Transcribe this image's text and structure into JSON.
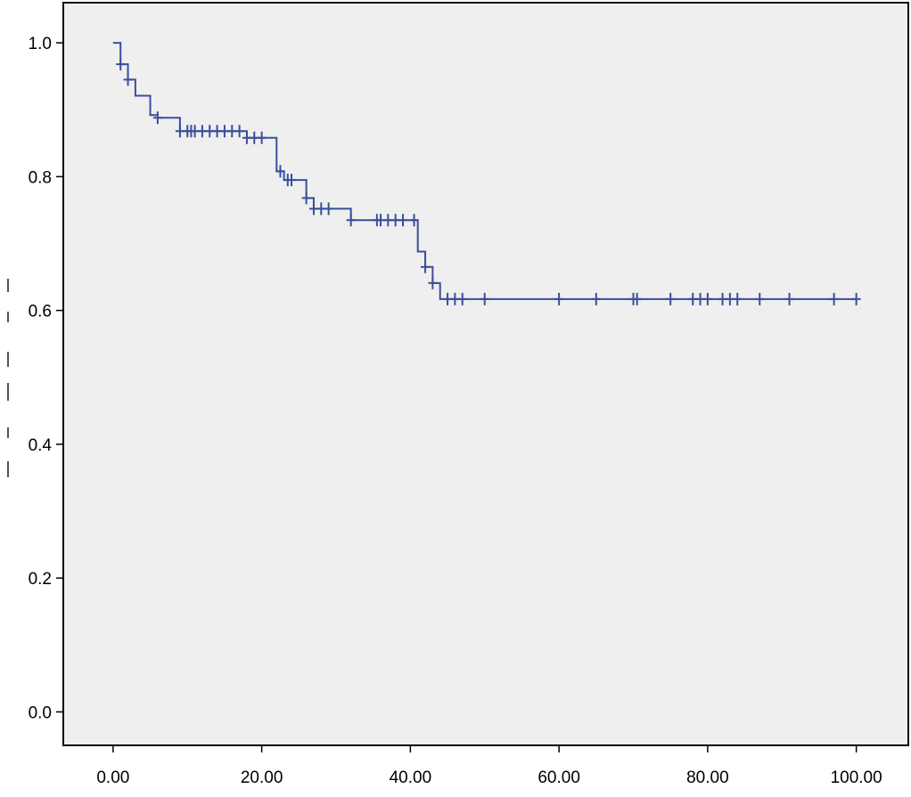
{
  "chart_data": {
    "type": "line",
    "subtype": "kaplan-meier-step",
    "title": "",
    "xlabel": "",
    "ylabel": "",
    "xlim": [
      -6.7,
      107
    ],
    "ylim": [
      -0.05,
      1.06
    ],
    "x_ticks": [
      "0.00",
      "20.00",
      "40.00",
      "60.00",
      "80.00",
      "100.00"
    ],
    "y_ticks": [
      "0.0",
      "0.2",
      "0.4",
      "0.6",
      "0.8",
      "1.0"
    ],
    "grid": false,
    "legend": "none",
    "series": [
      {
        "step_points": [
          [
            0,
            1.0
          ],
          [
            1,
            0.968
          ],
          [
            2,
            0.945
          ],
          [
            3,
            0.921
          ],
          [
            5,
            0.892
          ],
          [
            6,
            0.888
          ],
          [
            9,
            0.868
          ],
          [
            18,
            0.858
          ],
          [
            22,
            0.808
          ],
          [
            23,
            0.795
          ],
          [
            26,
            0.768
          ],
          [
            27,
            0.752
          ],
          [
            32,
            0.735
          ],
          [
            41,
            0.688
          ],
          [
            42,
            0.665
          ],
          [
            43,
            0.641
          ],
          [
            44,
            0.617
          ],
          [
            100,
            0.617
          ]
        ],
        "censored_times": [
          1,
          2,
          6,
          9,
          10,
          10.5,
          11,
          12,
          13,
          14,
          15,
          16,
          17,
          18,
          19,
          20,
          22.5,
          23.5,
          24,
          26,
          27,
          28,
          29,
          32,
          35.5,
          36,
          37,
          38,
          39,
          40.5,
          42,
          43,
          45,
          46,
          47,
          50,
          60,
          65,
          70,
          70.5,
          75,
          78,
          79,
          80,
          82,
          83,
          84,
          87,
          91,
          97,
          100
        ]
      }
    ],
    "colors": {
      "line": "#3a4e9c",
      "plot_background": "#efefef",
      "frame": "#000000"
    }
  }
}
